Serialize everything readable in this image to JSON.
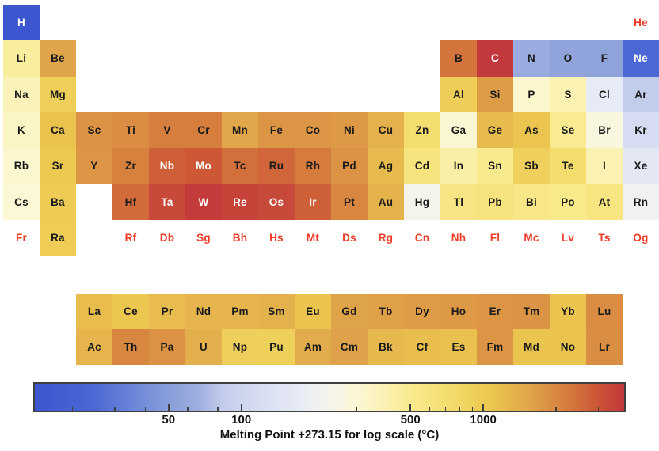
{
  "chart_data": {
    "type": "heatmap",
    "subtype": "periodic-table",
    "title": "",
    "colorbar": {
      "label": "Melting Point +273.15 for log scale (°C)",
      "scale": "log",
      "vmin": 14.01,
      "vmax": 3823,
      "major_ticks": [
        50,
        100,
        500,
        1000
      ],
      "minor_ticks": [
        20,
        30,
        40,
        60,
        70,
        80,
        90,
        200,
        300,
        400,
        600,
        700,
        800,
        900,
        2000,
        3000
      ],
      "gradient_stops": [
        [
          0.0,
          "#3a57d0"
        ],
        [
          0.1,
          "#4c68d4"
        ],
        [
          0.17,
          "#6d87d8"
        ],
        [
          0.24,
          "#8fa3db"
        ],
        [
          0.28,
          "#9fafe0"
        ],
        [
          0.32,
          "#c3cdeb"
        ],
        [
          0.38,
          "#d7ddf1"
        ],
        [
          0.44,
          "#e5e9f5"
        ],
        [
          0.47,
          "#eef0f4"
        ],
        [
          0.51,
          "#f7f5e8"
        ],
        [
          0.55,
          "#fcf7d2"
        ],
        [
          0.6,
          "#faf0ad"
        ],
        [
          0.64,
          "#f8ea8e"
        ],
        [
          0.7,
          "#f4dd6e"
        ],
        [
          0.77,
          "#ecc850"
        ],
        [
          0.84,
          "#e0a54a"
        ],
        [
          0.9,
          "#d67e3e"
        ],
        [
          0.95,
          "#cc5836"
        ],
        [
          1.0,
          "#c2383c"
        ]
      ]
    },
    "styles": {
      "no_data_text_color": "#ee3b28",
      "data_text_color": "#1a1a1a",
      "light_text_color": "#ffffff",
      "white_text_above_norm": 0.936,
      "white_text_below_norm": 0.12
    },
    "elements": [
      {
        "symbol": "H",
        "row": 1,
        "col": 1,
        "mp": 14.01
      },
      {
        "symbol": "He",
        "row": 1,
        "col": 18,
        "mp": null
      },
      {
        "symbol": "Li",
        "row": 2,
        "col": 1,
        "mp": 453.65
      },
      {
        "symbol": "Be",
        "row": 2,
        "col": 2,
        "mp": 1560
      },
      {
        "symbol": "B",
        "row": 2,
        "col": 13,
        "mp": 2349
      },
      {
        "symbol": "C",
        "row": 2,
        "col": 14,
        "mp": 3823
      },
      {
        "symbol": "N",
        "row": 2,
        "col": 15,
        "mp": 63.15
      },
      {
        "symbol": "O",
        "row": 2,
        "col": 16,
        "mp": 54.36
      },
      {
        "symbol": "F",
        "row": 2,
        "col": 17,
        "mp": 53.53
      },
      {
        "symbol": "Ne",
        "row": 2,
        "col": 18,
        "mp": 24.56
      },
      {
        "symbol": "Na",
        "row": 3,
        "col": 1,
        "mp": 370.94
      },
      {
        "symbol": "Mg",
        "row": 3,
        "col": 2,
        "mp": 923
      },
      {
        "symbol": "Al",
        "row": 3,
        "col": 13,
        "mp": 933.47
      },
      {
        "symbol": "Si",
        "row": 3,
        "col": 14,
        "mp": 1687
      },
      {
        "symbol": "P",
        "row": 3,
        "col": 15,
        "mp": 317.3
      },
      {
        "symbol": "S",
        "row": 3,
        "col": 16,
        "mp": 388.36
      },
      {
        "symbol": "Cl",
        "row": 3,
        "col": 17,
        "mp": 171.6
      },
      {
        "symbol": "Ar",
        "row": 3,
        "col": 18,
        "mp": 83.81
      },
      {
        "symbol": "K",
        "row": 4,
        "col": 1,
        "mp": 336.7
      },
      {
        "symbol": "Ca",
        "row": 4,
        "col": 2,
        "mp": 1115
      },
      {
        "symbol": "Sc",
        "row": 4,
        "col": 3,
        "mp": 1814
      },
      {
        "symbol": "Ti",
        "row": 4,
        "col": 4,
        "mp": 1941
      },
      {
        "symbol": "V",
        "row": 4,
        "col": 5,
        "mp": 2183
      },
      {
        "symbol": "Cr",
        "row": 4,
        "col": 6,
        "mp": 2180
      },
      {
        "symbol": "Mn",
        "row": 4,
        "col": 7,
        "mp": 1519
      },
      {
        "symbol": "Fe",
        "row": 4,
        "col": 8,
        "mp": 1811
      },
      {
        "symbol": "Co",
        "row": 4,
        "col": 9,
        "mp": 1768
      },
      {
        "symbol": "Ni",
        "row": 4,
        "col": 10,
        "mp": 1728
      },
      {
        "symbol": "Cu",
        "row": 4,
        "col": 11,
        "mp": 1357.77
      },
      {
        "symbol": "Zn",
        "row": 4,
        "col": 12,
        "mp": 692.68
      },
      {
        "symbol": "Ga",
        "row": 4,
        "col": 13,
        "mp": 302.91
      },
      {
        "symbol": "Ge",
        "row": 4,
        "col": 14,
        "mp": 1211.4
      },
      {
        "symbol": "As",
        "row": 4,
        "col": 15,
        "mp": 1090
      },
      {
        "symbol": "Se",
        "row": 4,
        "col": 16,
        "mp": 494
      },
      {
        "symbol": "Br",
        "row": 4,
        "col": 17,
        "mp": 265.8
      },
      {
        "symbol": "Kr",
        "row": 4,
        "col": 18,
        "mp": 115.78
      },
      {
        "symbol": "Rb",
        "row": 5,
        "col": 1,
        "mp": 312.45
      },
      {
        "symbol": "Sr",
        "row": 5,
        "col": 2,
        "mp": 1050
      },
      {
        "symbol": "Y",
        "row": 5,
        "col": 3,
        "mp": 1799
      },
      {
        "symbol": "Zr",
        "row": 5,
        "col": 4,
        "mp": 2128
      },
      {
        "symbol": "Nb",
        "row": 5,
        "col": 5,
        "mp": 2750
      },
      {
        "symbol": "Mo",
        "row": 5,
        "col": 6,
        "mp": 2896
      },
      {
        "symbol": "Tc",
        "row": 5,
        "col": 7,
        "mp": 2430
      },
      {
        "symbol": "Ru",
        "row": 5,
        "col": 8,
        "mp": 2607
      },
      {
        "symbol": "Rh",
        "row": 5,
        "col": 9,
        "mp": 2237
      },
      {
        "symbol": "Pd",
        "row": 5,
        "col": 10,
        "mp": 1828.05
      },
      {
        "symbol": "Ag",
        "row": 5,
        "col": 11,
        "mp": 1234.93
      },
      {
        "symbol": "Cd",
        "row": 5,
        "col": 12,
        "mp": 594.22
      },
      {
        "symbol": "In",
        "row": 5,
        "col": 13,
        "mp": 429.75
      },
      {
        "symbol": "Sn",
        "row": 5,
        "col": 14,
        "mp": 505.08
      },
      {
        "symbol": "Sb",
        "row": 5,
        "col": 15,
        "mp": 903.78
      },
      {
        "symbol": "Te",
        "row": 5,
        "col": 16,
        "mp": 722.66
      },
      {
        "symbol": "I",
        "row": 5,
        "col": 17,
        "mp": 386.85
      },
      {
        "symbol": "Xe",
        "row": 5,
        "col": 18,
        "mp": 161.4
      },
      {
        "symbol": "Cs",
        "row": 6,
        "col": 1,
        "mp": 301.59
      },
      {
        "symbol": "Ba",
        "row": 6,
        "col": 2,
        "mp": 1000
      },
      {
        "symbol": "Hf",
        "row": 6,
        "col": 4,
        "mp": 2506
      },
      {
        "symbol": "Ta",
        "row": 6,
        "col": 5,
        "mp": 3290
      },
      {
        "symbol": "W",
        "row": 6,
        "col": 6,
        "mp": 3695
      },
      {
        "symbol": "Re",
        "row": 6,
        "col": 7,
        "mp": 3459
      },
      {
        "symbol": "Os",
        "row": 6,
        "col": 8,
        "mp": 3306
      },
      {
        "symbol": "Ir",
        "row": 6,
        "col": 9,
        "mp": 2719
      },
      {
        "symbol": "Pt",
        "row": 6,
        "col": 10,
        "mp": 2041.4
      },
      {
        "symbol": "Au",
        "row": 6,
        "col": 11,
        "mp": 1337.33
      },
      {
        "symbol": "Hg",
        "row": 6,
        "col": 12,
        "mp": 234.32
      },
      {
        "symbol": "Tl",
        "row": 6,
        "col": 13,
        "mp": 577
      },
      {
        "symbol": "Pb",
        "row": 6,
        "col": 14,
        "mp": 600.61
      },
      {
        "symbol": "Bi",
        "row": 6,
        "col": 15,
        "mp": 544.55
      },
      {
        "symbol": "Po",
        "row": 6,
        "col": 16,
        "mp": 527
      },
      {
        "symbol": "At",
        "row": 6,
        "col": 17,
        "mp": 575
      },
      {
        "symbol": "Rn",
        "row": 6,
        "col": 18,
        "mp": 202
      },
      {
        "symbol": "Fr",
        "row": 7,
        "col": 1,
        "mp": null
      },
      {
        "symbol": "Ra",
        "row": 7,
        "col": 2,
        "mp": 973
      },
      {
        "symbol": "Rf",
        "row": 7,
        "col": 4,
        "mp": null
      },
      {
        "symbol": "Db",
        "row": 7,
        "col": 5,
        "mp": null
      },
      {
        "symbol": "Sg",
        "row": 7,
        "col": 6,
        "mp": null
      },
      {
        "symbol": "Bh",
        "row": 7,
        "col": 7,
        "mp": null
      },
      {
        "symbol": "Hs",
        "row": 7,
        "col": 8,
        "mp": null
      },
      {
        "symbol": "Mt",
        "row": 7,
        "col": 9,
        "mp": null
      },
      {
        "symbol": "Ds",
        "row": 7,
        "col": 10,
        "mp": null
      },
      {
        "symbol": "Rg",
        "row": 7,
        "col": 11,
        "mp": null
      },
      {
        "symbol": "Cn",
        "row": 7,
        "col": 12,
        "mp": null
      },
      {
        "symbol": "Nh",
        "row": 7,
        "col": 13,
        "mp": null
      },
      {
        "symbol": "Fl",
        "row": 7,
        "col": 14,
        "mp": null
      },
      {
        "symbol": "Mc",
        "row": 7,
        "col": 15,
        "mp": null
      },
      {
        "symbol": "Lv",
        "row": 7,
        "col": 16,
        "mp": null
      },
      {
        "symbol": "Ts",
        "row": 7,
        "col": 17,
        "mp": null
      },
      {
        "symbol": "Og",
        "row": 7,
        "col": 18,
        "mp": null
      },
      {
        "symbol": "La",
        "row": 8,
        "col": 3,
        "mp": 1193
      },
      {
        "symbol": "Ce",
        "row": 8,
        "col": 4,
        "mp": 1068
      },
      {
        "symbol": "Pr",
        "row": 8,
        "col": 5,
        "mp": 1208
      },
      {
        "symbol": "Nd",
        "row": 8,
        "col": 6,
        "mp": 1297
      },
      {
        "symbol": "Pm",
        "row": 8,
        "col": 7,
        "mp": 1315
      },
      {
        "symbol": "Sm",
        "row": 8,
        "col": 8,
        "mp": 1345
      },
      {
        "symbol": "Eu",
        "row": 8,
        "col": 9,
        "mp": 1099
      },
      {
        "symbol": "Gd",
        "row": 8,
        "col": 10,
        "mp": 1585
      },
      {
        "symbol": "Tb",
        "row": 8,
        "col": 11,
        "mp": 1629
      },
      {
        "symbol": "Dy",
        "row": 8,
        "col": 12,
        "mp": 1680
      },
      {
        "symbol": "Ho",
        "row": 8,
        "col": 13,
        "mp": 1734
      },
      {
        "symbol": "Er",
        "row": 8,
        "col": 14,
        "mp": 1802
      },
      {
        "symbol": "Tm",
        "row": 8,
        "col": 15,
        "mp": 1818
      },
      {
        "symbol": "Yb",
        "row": 8,
        "col": 16,
        "mp": 1097
      },
      {
        "symbol": "Lu",
        "row": 8,
        "col": 17,
        "mp": 1925
      },
      {
        "symbol": "Ac",
        "row": 9,
        "col": 3,
        "mp": 1323
      },
      {
        "symbol": "Th",
        "row": 9,
        "col": 4,
        "mp": 2023
      },
      {
        "symbol": "Pa",
        "row": 9,
        "col": 5,
        "mp": 1841
      },
      {
        "symbol": "U",
        "row": 9,
        "col": 6,
        "mp": 1405.3
      },
      {
        "symbol": "Np",
        "row": 9,
        "col": 7,
        "mp": 917
      },
      {
        "symbol": "Pu",
        "row": 9,
        "col": 8,
        "mp": 912.5
      },
      {
        "symbol": "Am",
        "row": 9,
        "col": 9,
        "mp": 1449
      },
      {
        "symbol": "Cm",
        "row": 9,
        "col": 10,
        "mp": 1613
      },
      {
        "symbol": "Bk",
        "row": 9,
        "col": 11,
        "mp": 1259
      },
      {
        "symbol": "Cf",
        "row": 9,
        "col": 12,
        "mp": 1173
      },
      {
        "symbol": "Es",
        "row": 9,
        "col": 13,
        "mp": 1133
      },
      {
        "symbol": "Fm",
        "row": 9,
        "col": 14,
        "mp": 1800
      },
      {
        "symbol": "Md",
        "row": 9,
        "col": 15,
        "mp": 1100
      },
      {
        "symbol": "No",
        "row": 9,
        "col": 16,
        "mp": 1100
      },
      {
        "symbol": "Lr",
        "row": 9,
        "col": 17,
        "mp": 1900
      }
    ]
  }
}
